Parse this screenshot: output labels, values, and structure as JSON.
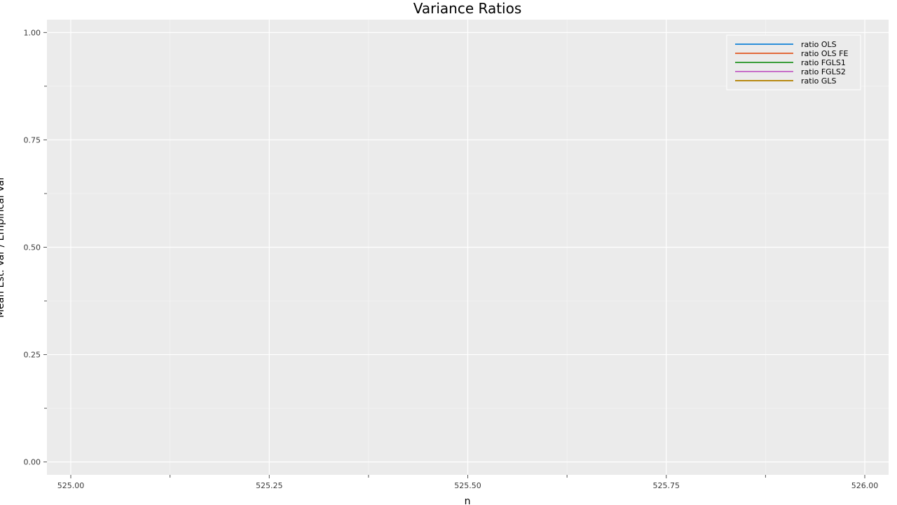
{
  "chart_data": {
    "type": "line",
    "title": "Variance Ratios",
    "xlabel": "n",
    "ylabel": "Mean Est. Var / Empirical Var",
    "xlim": [
      524.97,
      526.03
    ],
    "ylim": [
      -0.03,
      1.03
    ],
    "x_ticks": [
      525.0,
      525.25,
      525.5,
      525.75,
      526.0
    ],
    "x_tick_labels": [
      "525.00",
      "525.25",
      "525.50",
      "525.75",
      "526.00"
    ],
    "y_ticks": [
      0.0,
      0.25,
      0.5,
      0.75,
      1.0
    ],
    "y_tick_labels": [
      "0.00",
      "0.25",
      "0.50",
      "0.75",
      "1.00"
    ],
    "grid": true,
    "legend_position": "top-right",
    "background_color": "#ebebeb",
    "grid_color": "#ffffff",
    "series": [
      {
        "name": "ratio OLS",
        "color": "#2c8fd9",
        "x": [],
        "y": []
      },
      {
        "name": "ratio OLS FE",
        "color": "#e26a3c",
        "x": [],
        "y": []
      },
      {
        "name": "ratio FGLS1",
        "color": "#3a9e3a",
        "x": [],
        "y": []
      },
      {
        "name": "ratio FGLS2",
        "color": "#c770c9",
        "x": [],
        "y": []
      },
      {
        "name": "ratio GLS",
        "color": "#b88a12",
        "x": [],
        "y": []
      }
    ]
  }
}
